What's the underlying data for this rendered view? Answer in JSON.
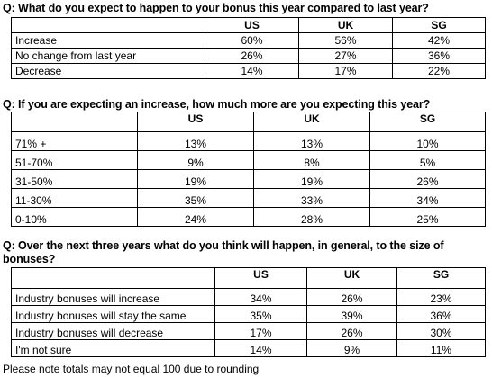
{
  "questions": [
    {
      "text": "Q: What do you expect to happen to your bonus this year compared to last year?",
      "columns": [
        "",
        "US",
        "UK",
        "SG"
      ],
      "rows": [
        {
          "label": "Increase",
          "values": [
            "60%",
            "56%",
            "42%"
          ]
        },
        {
          "label": "No change from last year",
          "values": [
            "26%",
            "27%",
            "36%"
          ]
        },
        {
          "label": "Decrease",
          "values": [
            "14%",
            "17%",
            "22%"
          ]
        }
      ]
    },
    {
      "text": "Q: If you are expecting an increase, how much more are you expecting this year?",
      "columns": [
        "",
        "US",
        "UK",
        "SG"
      ],
      "rows": [
        {
          "label": "71% +",
          "values": [
            "13%",
            "13%",
            "10%"
          ]
        },
        {
          "label": "51-70%",
          "values": [
            "9%",
            "8%",
            "5%"
          ]
        },
        {
          "label": "31-50%",
          "values": [
            "19%",
            "19%",
            "26%"
          ]
        },
        {
          "label": "11-30%",
          "values": [
            "35%",
            "33%",
            "34%"
          ]
        },
        {
          "label": "0-10%",
          "values": [
            "24%",
            "28%",
            "25%"
          ]
        }
      ]
    },
    {
      "text_line1": "Q: Over the next three years what do you think will happen, in general, to the size of",
      "text_line2": "bonuses?",
      "columns": [
        "",
        "US",
        "UK",
        "SG"
      ],
      "rows": [
        {
          "label": "Industry bonuses will increase",
          "values": [
            "34%",
            "26%",
            "23%"
          ]
        },
        {
          "label": "Industry bonuses will stay the same",
          "values": [
            "35%",
            "39%",
            "36%"
          ]
        },
        {
          "label": "Industry bonuses will decrease",
          "values": [
            "17%",
            "26%",
            "30%"
          ]
        },
        {
          "label": "I'm not sure",
          "values": [
            "14%",
            "9%",
            "11%"
          ]
        }
      ]
    }
  ],
  "footnote": "Please note totals may not equal 100 due to rounding"
}
